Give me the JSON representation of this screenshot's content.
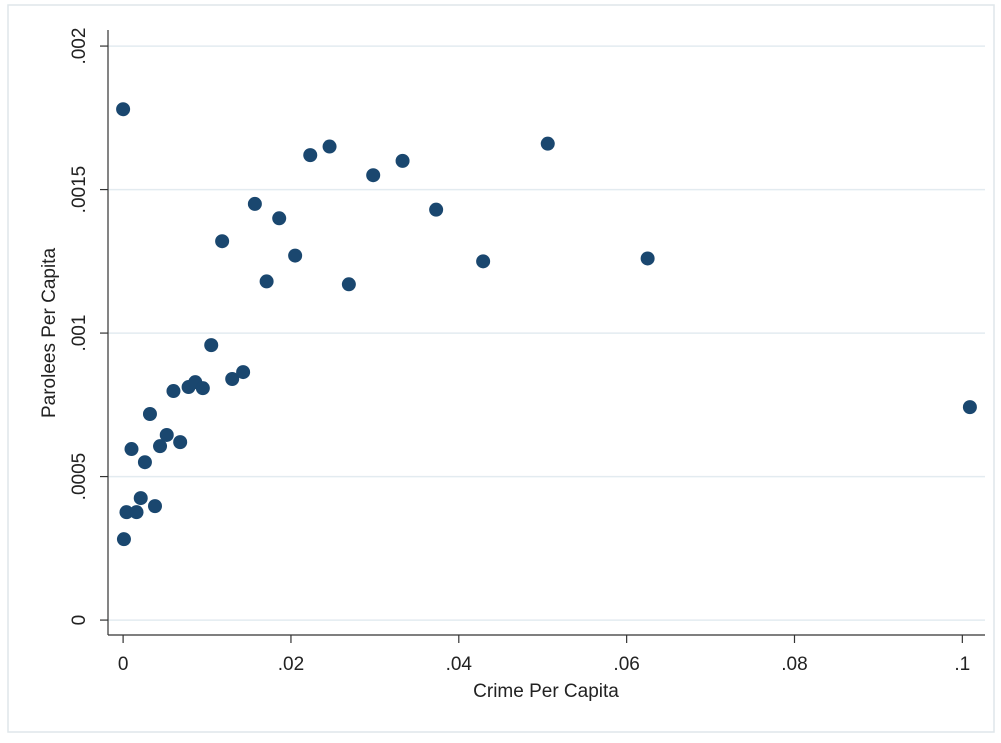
{
  "chart_data": {
    "type": "scatter",
    "x_label": "Crime Per Capita",
    "y_label": "Parolees Per Capita",
    "x": [
      0,
      0.0001,
      0.0004,
      0.001,
      0.0016,
      0.0021,
      0.0026,
      0.0032,
      0.0038,
      0.0044,
      0.0052,
      0.006,
      0.0068,
      0.0078,
      0.0086,
      0.0095,
      0.0105,
      0.0118,
      0.013,
      0.0143,
      0.0157,
      0.0171,
      0.0186,
      0.0205,
      0.0223,
      0.0246,
      0.0269,
      0.0298,
      0.0333,
      0.0373,
      0.0429,
      0.0506,
      0.0625,
      0.1009
    ],
    "values": [
      0.00178,
      0.000282,
      0.000376,
      0.000596,
      0.000376,
      0.000425,
      0.00055,
      0.000718,
      0.000397,
      0.000606,
      0.000645,
      0.000798,
      0.00062,
      0.000812,
      0.000829,
      0.000808,
      0.000958,
      0.00132,
      0.00084,
      0.000864,
      0.00145,
      0.00118,
      0.0014,
      0.00127,
      0.00162,
      0.00165,
      0.00117,
      0.00155,
      0.0016,
      0.00143,
      0.00125,
      0.00166,
      0.00126,
      0.000742
    ],
    "color": "#1a476f",
    "xlim": [
      -0.0018,
      0.1027
    ],
    "ylim": [
      -5.2e-05,
      0.002056
    ],
    "xticks": [
      0,
      {
        "value": 0.02,
        "label": ".02"
      },
      {
        "value": 0.04,
        "label": ".04"
      },
      {
        "value": 0.06,
        "label": ".06"
      },
      {
        "value": 0.08,
        "label": ".08"
      },
      {
        "value": 0.1,
        "label": ".1"
      }
    ],
    "yticks": [
      0,
      {
        "value": 0.0005,
        "label": ".0005"
      },
      {
        "value": 0.001,
        "label": ".001"
      },
      {
        "value": 0.0015,
        "label": ".0015"
      },
      {
        "value": 0.002,
        "label": ".002"
      }
    ],
    "grid": true
  }
}
